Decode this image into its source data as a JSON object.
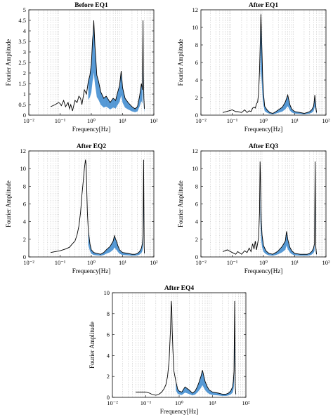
{
  "chart_data": [
    {
      "type": "line",
      "title": "Before EQ1",
      "xlabel": "Frequency[Hz]",
      "ylabel": "Fourier Amplitude",
      "xscale": "log",
      "xlim": [
        0.01,
        100
      ],
      "ylim": [
        0,
        5
      ],
      "xtick_labels": [
        "10⁻²",
        "10⁻¹",
        "10⁰",
        "10¹",
        "10²"
      ],
      "ytick_values": [
        0,
        0.5,
        1,
        1.5,
        2,
        2.5,
        3,
        3.5,
        4,
        4.5,
        5
      ],
      "ytick_labels": [
        "0",
        "0.5",
        "1",
        "1.5",
        "2",
        "2.5",
        "3",
        "3.5",
        "4",
        "4.5",
        "5"
      ],
      "grid": "x-minor-dotted",
      "series": [
        {
          "x": [
            0.05,
            0.07,
            0.09,
            0.1,
            0.11,
            0.13,
            0.15,
            0.18,
            0.2,
            0.22,
            0.25,
            0.3,
            0.35,
            0.4,
            0.45,
            0.5,
            0.6,
            0.7,
            0.8,
            0.9,
            1.0,
            1.1,
            1.15,
            1.2,
            1.3,
            1.4,
            1.5,
            1.7,
            2.0,
            2.5,
            3.0,
            4.0,
            5.0,
            6.0,
            7.0,
            8.0,
            9.0,
            10,
            12,
            15,
            20,
            25,
            30,
            35,
            40,
            43,
            45,
            46,
            48,
            50
          ],
          "y": [
            0.4,
            0.5,
            0.6,
            0.55,
            0.45,
            0.7,
            0.4,
            0.6,
            0.3,
            0.5,
            0.2,
            0.7,
            0.6,
            0.9,
            0.8,
            0.5,
            1.2,
            1.0,
            1.6,
            1.9,
            2.4,
            3.6,
            3.9,
            4.5,
            3.3,
            2.6,
            1.9,
            1.6,
            1.1,
            0.8,
            0.9,
            0.6,
            0.8,
            0.7,
            1.1,
            1.4,
            2.1,
            1.3,
            0.8,
            0.6,
            0.4,
            0.3,
            0.4,
            0.9,
            1.5,
            1.2,
            4.5,
            2.0,
            0.8,
            0.3
          ]
        }
      ]
    },
    {
      "type": "line",
      "title": "After EQ1",
      "xlabel": "Frequency[Hz]",
      "ylabel": "Fourier Amplitude",
      "xscale": "log",
      "xlim": [
        0.01,
        100
      ],
      "ylim": [
        0,
        12
      ],
      "xtick_labels": [
        "10⁻²",
        "10⁻¹",
        "10⁰",
        "10¹",
        "10²"
      ],
      "ytick_values": [
        0,
        2,
        4,
        6,
        8,
        10,
        12
      ],
      "ytick_labels": [
        "0",
        "2",
        "4",
        "6",
        "8",
        "10",
        "12"
      ],
      "grid": "x-minor-dotted",
      "series": [
        {
          "x": [
            0.05,
            0.08,
            0.1,
            0.13,
            0.15,
            0.2,
            0.25,
            0.3,
            0.35,
            0.4,
            0.45,
            0.5,
            0.55,
            0.6,
            0.65,
            0.7,
            0.75,
            0.8,
            0.83,
            0.86,
            0.9,
            0.95,
            1.0,
            1.1,
            1.3,
            1.6,
            2.0,
            2.5,
            3.0,
            4.0,
            5.0,
            5.5,
            6.0,
            6.5,
            7.0,
            8.0,
            10,
            15,
            20,
            25,
            30,
            35,
            40,
            42,
            44,
            46,
            48,
            50
          ],
          "y": [
            0.3,
            0.5,
            0.6,
            0.4,
            0.4,
            0.3,
            0.6,
            0.3,
            0.5,
            0.4,
            0.8,
            0.9,
            0.8,
            1.3,
            1.5,
            2.5,
            5.0,
            9.0,
            11.5,
            9.5,
            7.0,
            4.0,
            2.5,
            1.0,
            0.6,
            0.3,
            0.2,
            0.4,
            0.6,
            0.9,
            1.5,
            1.9,
            2.3,
            1.7,
            1.2,
            0.7,
            0.4,
            0.3,
            0.2,
            0.3,
            0.4,
            0.6,
            1.0,
            1.5,
            2.3,
            1.5,
            0.8,
            0.3
          ]
        }
      ]
    },
    {
      "type": "line",
      "title": "After EQ2",
      "xlabel": "Frequency[Hz]",
      "ylabel": "Fourier Amplitude",
      "xscale": "log",
      "xlim": [
        0.01,
        100
      ],
      "ylim": [
        0,
        12
      ],
      "xtick_labels": [
        "10⁻²",
        "10⁻¹",
        "10⁰",
        "10¹",
        "10²"
      ],
      "ytick_values": [
        0,
        2,
        4,
        6,
        8,
        10,
        12
      ],
      "ytick_labels": [
        "0",
        "2",
        "4",
        "6",
        "8",
        "10",
        "12"
      ],
      "grid": "x-minor-dotted",
      "series": [
        {
          "x": [
            0.05,
            0.07,
            0.1,
            0.15,
            0.2,
            0.25,
            0.3,
            0.35,
            0.4,
            0.45,
            0.5,
            0.55,
            0.6,
            0.65,
            0.68,
            0.7,
            0.72,
            0.75,
            0.8,
            0.9,
            1.0,
            1.2,
            1.5,
            2.0,
            2.5,
            3.0,
            4.0,
            5.0,
            5.5,
            6.0,
            6.5,
            7.0,
            8.0,
            10,
            15,
            20,
            25,
            30,
            35,
            40,
            43,
            45,
            47,
            49,
            50
          ],
          "y": [
            0.5,
            0.6,
            0.7,
            0.9,
            1.1,
            1.5,
            1.8,
            2.5,
            3.5,
            5.0,
            7.0,
            8.5,
            10.0,
            11.0,
            10.5,
            9.0,
            7.0,
            5.0,
            3.0,
            1.5,
            0.8,
            0.5,
            0.4,
            0.3,
            0.5,
            0.8,
            1.2,
            1.8,
            2.4,
            2.0,
            1.7,
            1.3,
            0.8,
            0.5,
            0.4,
            0.3,
            0.3,
            0.4,
            0.6,
            1.0,
            1.5,
            2.5,
            11.0,
            1.2,
            0.4
          ]
        }
      ]
    },
    {
      "type": "line",
      "title": "After EQ3",
      "xlabel": "Frequency[Hz]",
      "ylabel": "Fourier Amplitude",
      "xscale": "log",
      "xlim": [
        0.01,
        100
      ],
      "ylim": [
        0,
        12
      ],
      "xtick_labels": [
        "10⁻²",
        "10⁻¹",
        "10⁰",
        "10¹",
        "10²"
      ],
      "ytick_values": [
        0,
        2,
        4,
        6,
        8,
        10,
        12
      ],
      "ytick_labels": [
        "0",
        "2",
        "4",
        "6",
        "8",
        "10",
        "12"
      ],
      "grid": "x-minor-dotted",
      "series": [
        {
          "x": [
            0.05,
            0.07,
            0.1,
            0.13,
            0.15,
            0.2,
            0.25,
            0.3,
            0.35,
            0.4,
            0.45,
            0.5,
            0.55,
            0.6,
            0.65,
            0.7,
            0.75,
            0.78,
            0.8,
            0.82,
            0.85,
            0.9,
            1.0,
            1.2,
            1.5,
            2.0,
            2.5,
            3.0,
            4.0,
            5.0,
            5.5,
            6.0,
            6.5,
            7.0,
            8.0,
            10,
            15,
            20,
            25,
            30,
            35,
            40,
            43,
            45,
            47,
            50
          ],
          "y": [
            0.6,
            0.8,
            0.5,
            0.3,
            0.6,
            0.3,
            0.7,
            0.5,
            1.0,
            0.6,
            1.5,
            0.9,
            1.8,
            0.8,
            1.5,
            2.2,
            5.0,
            10.8,
            9.5,
            7.0,
            4.0,
            2.5,
            1.3,
            0.7,
            0.4,
            0.3,
            0.5,
            0.7,
            1.2,
            1.8,
            2.9,
            2.0,
            1.5,
            1.1,
            0.7,
            0.4,
            0.3,
            0.3,
            0.3,
            0.4,
            0.6,
            1.0,
            1.5,
            10.8,
            1.2,
            0.3
          ]
        }
      ]
    },
    {
      "type": "line",
      "title": "After EQ4",
      "xlabel": "Frequency[Hz]",
      "ylabel": "Fourier Amplitude",
      "xscale": "log",
      "xlim": [
        0.01,
        100
      ],
      "ylim": [
        0,
        10
      ],
      "xtick_labels": [
        "10⁻²",
        "10⁻¹",
        "10⁰",
        "10¹",
        "10²"
      ],
      "ytick_values": [
        0,
        2,
        4,
        6,
        8,
        10
      ],
      "ytick_labels": [
        "0",
        "2",
        "4",
        "6",
        "8",
        "10"
      ],
      "grid": "x-minor-dotted",
      "series": [
        {
          "x": [
            0.05,
            0.07,
            0.1,
            0.13,
            0.15,
            0.2,
            0.25,
            0.3,
            0.35,
            0.4,
            0.45,
            0.5,
            0.55,
            0.58,
            0.6,
            0.62,
            0.65,
            0.7,
            0.8,
            0.9,
            1.0,
            1.2,
            1.5,
            2.0,
            2.5,
            3.0,
            3.5,
            4.0,
            4.5,
            5.0,
            5.5,
            6.0,
            7.0,
            8.0,
            10,
            15,
            20,
            25,
            30,
            35,
            40,
            42,
            44,
            46,
            48,
            50
          ],
          "y": [
            0.5,
            0.5,
            0.5,
            0.4,
            0.3,
            0.2,
            0.3,
            0.5,
            0.8,
            1.2,
            2.0,
            3.5,
            6.5,
            9.2,
            8.5,
            6.5,
            4.5,
            2.5,
            1.5,
            0.8,
            0.6,
            0.5,
            1.0,
            0.7,
            0.4,
            0.6,
            1.0,
            1.5,
            2.0,
            2.6,
            2.0,
            1.5,
            1.0,
            0.7,
            0.5,
            0.4,
            0.3,
            0.3,
            0.4,
            0.6,
            1.0,
            1.5,
            2.5,
            9.2,
            1.0,
            0.3
          ]
        }
      ]
    }
  ]
}
